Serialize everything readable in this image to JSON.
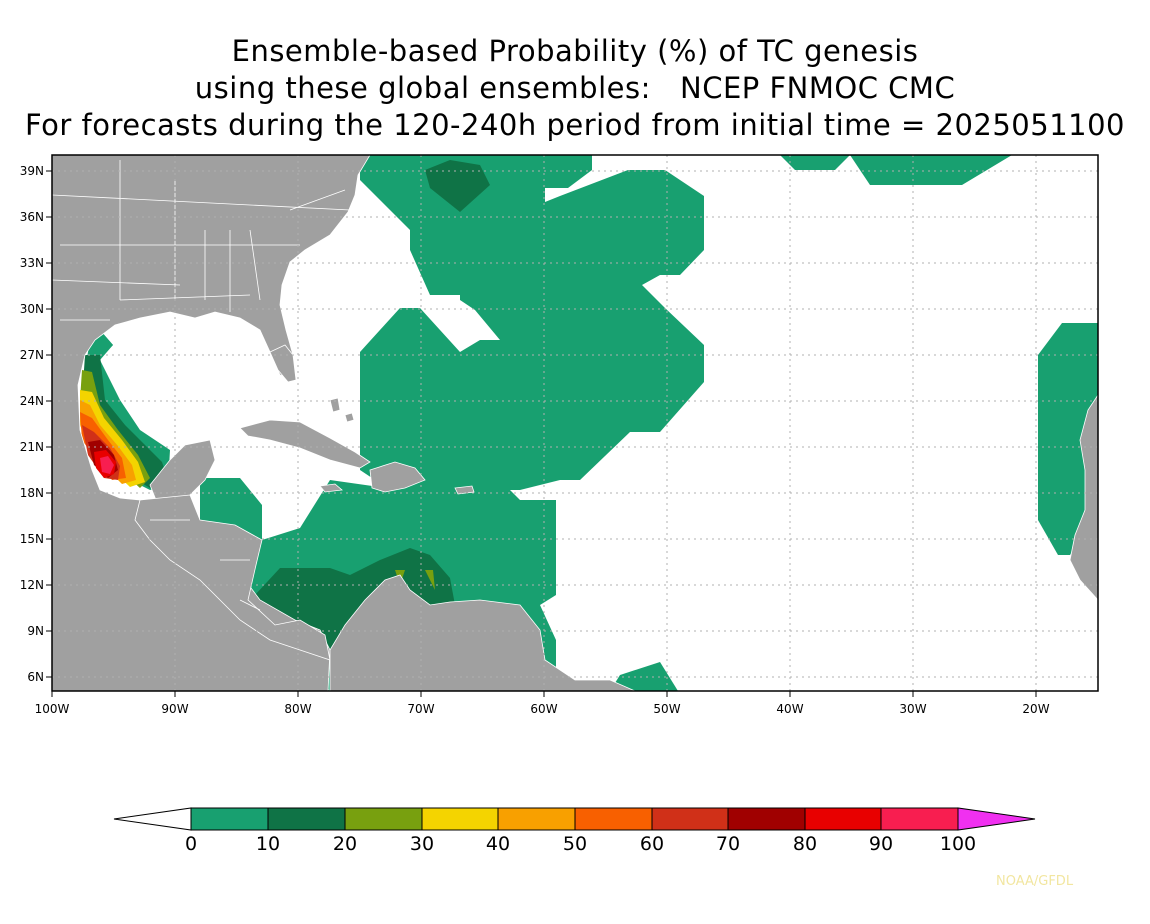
{
  "title": {
    "line1": "Ensemble-based Probability (%) of TC genesis",
    "line2": "using these global ensembles:   NCEP FNMOC CMC",
    "line3": "For forecasts during the 120-240h period from initial time = 2025051100"
  },
  "map": {
    "lon_range": [
      -100,
      -15
    ],
    "lat_range": [
      5,
      40
    ],
    "lat_ticks": [
      "39N",
      "36N",
      "33N",
      "30N",
      "27N",
      "24N",
      "21N",
      "18N",
      "15N",
      "12N",
      "9N",
      "6N"
    ],
    "lon_ticks": [
      "100W",
      "90W",
      "80W",
      "70W",
      "60W",
      "50W",
      "40W",
      "30W",
      "20W"
    ],
    "land_color": "#a0a0a0",
    "ocean_color": "#ffffff",
    "grid": "dotted"
  },
  "colorbar": {
    "labels": [
      "0",
      "10",
      "20",
      "30",
      "40",
      "50",
      "60",
      "70",
      "80",
      "90",
      "100"
    ],
    "colors": [
      "#18a070",
      "#0f7346",
      "#78a00f",
      "#f4d400",
      "#f8a000",
      "#f86000",
      "#d03018",
      "#a00000",
      "#e80000",
      "#f81e50"
    ],
    "low_arrow_color": "#ffffff",
    "high_arrow_color": "#f030f0"
  },
  "credit": "NOAA/GFDL"
}
